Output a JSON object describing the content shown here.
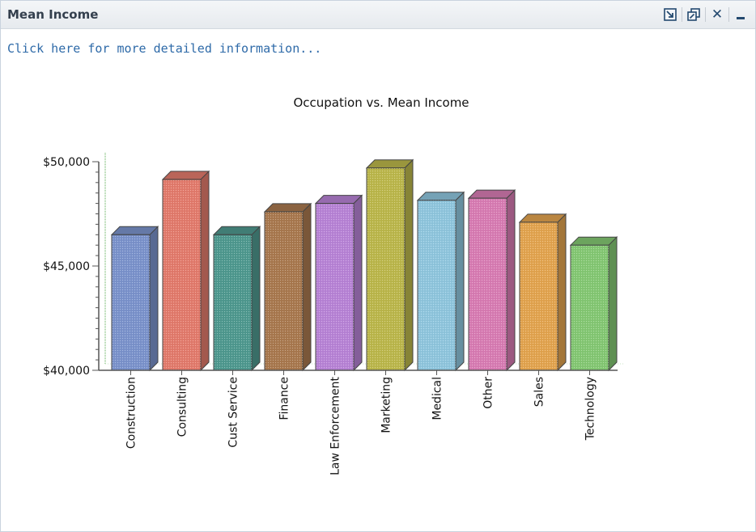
{
  "panel": {
    "title": "Mean Income",
    "link_text": "Click here for more detailed information...",
    "tool_icons": [
      "export-icon",
      "maximize-icon",
      "close-icon",
      "minimize-icon"
    ],
    "close_glyph": "✕"
  },
  "colors": {
    "header_text": "#333f4d",
    "link": "#2e6aa8",
    "tool_icon": "#23496f"
  },
  "chart_data": {
    "type": "bar",
    "title": "Occupation vs. Mean Income",
    "xlabel": "",
    "ylabel": "",
    "ylim": [
      40000,
      50000
    ],
    "yticks": [
      40000,
      45000,
      50000
    ],
    "ytick_labels": [
      "$40,000",
      "$45,000",
      "$50,000"
    ],
    "categories": [
      "Construction",
      "Consulting",
      "Cust Service",
      "Finance",
      "Law Enforcement",
      "Marketing",
      "Medical",
      "Other",
      "Sales",
      "Technology"
    ],
    "values": [
      46500,
      49150,
      46500,
      47600,
      48000,
      49700,
      48150,
      48250,
      47100,
      46000
    ],
    "colors": [
      "#7b93cc",
      "#e37b6c",
      "#4f998f",
      "#a9794f",
      "#b883d6",
      "#bcb74b",
      "#8fc6de",
      "#d87cb3",
      "#e3a44f",
      "#84c873"
    ],
    "style": "3d",
    "grid": false,
    "legend": "none"
  }
}
